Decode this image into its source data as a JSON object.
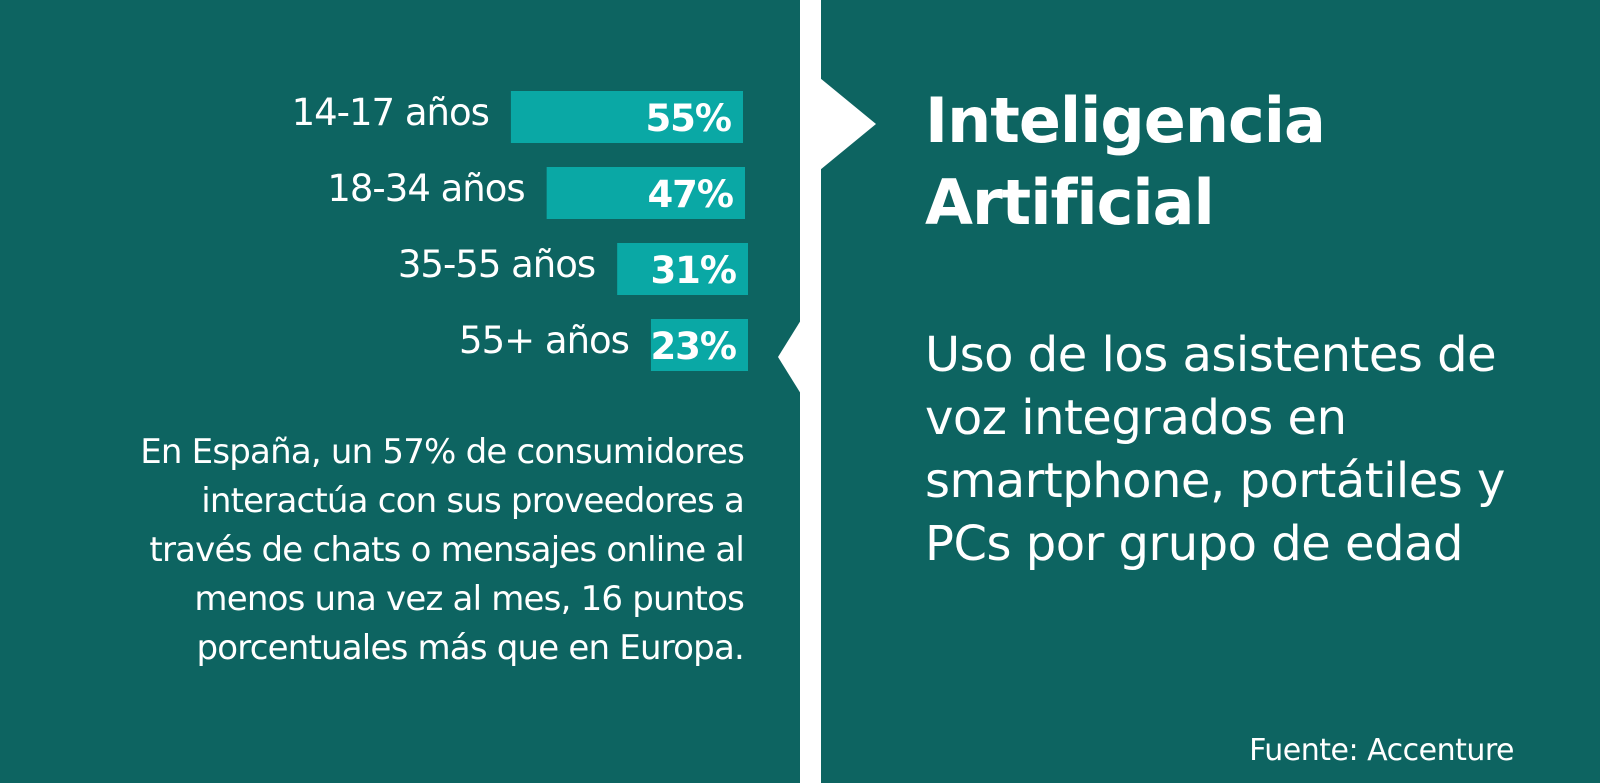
{
  "title": "Inteligencia Artificial",
  "subtitle": "Uso de los asistentes de voz integrados en smartphone, portátiles y PCs por grupo de edad",
  "note": "En España, un 57% de consumidores interactúa con sus proveedores a través de chats o mensajes online al menos una vez al mes, 16 puntos porcentuales más que en Europa.",
  "source": "Fuente: Accenture",
  "colors": {
    "background": "#0d6461",
    "bar": "#0aa8a5",
    "divider": "#ffffff",
    "text": "#ffffff"
  },
  "chart_data": {
    "type": "bar",
    "orientation": "horizontal",
    "categories": [
      "14-17 años",
      "18-34 años",
      "35-55 años",
      "55+ años"
    ],
    "values": [
      55,
      47,
      31,
      23
    ],
    "value_labels": [
      "55%",
      "47%",
      "31%",
      "23%"
    ],
    "unit": "%",
    "xlabel": "",
    "ylabel": "",
    "grid": false,
    "legend": "none"
  }
}
